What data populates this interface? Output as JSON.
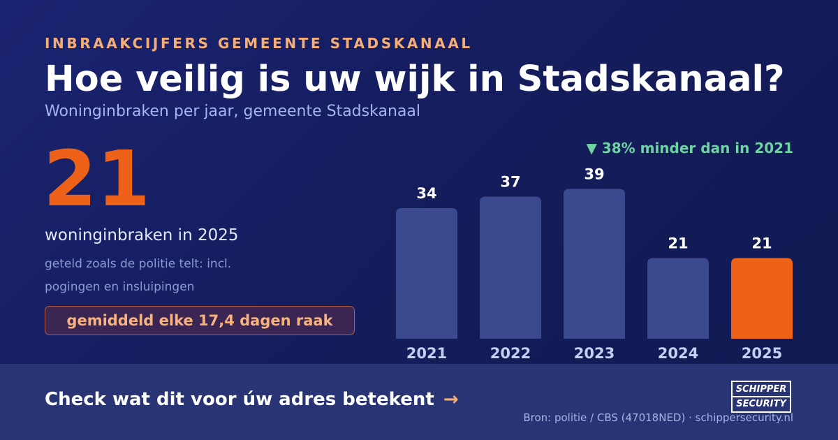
{
  "header": {
    "eyebrow": "INBRAAKCIJFERS GEMEENTE STADSKANAAL",
    "title": "Hoe veilig is uw wijk in Stadskanaal?",
    "subtitle": "Woninginbraken per jaar, gemeente Stadskanaal"
  },
  "stat": {
    "value": "21",
    "caption": "woninginbraken in 2025",
    "note": "geteld zoals de politie telt: incl. pogingen en insluipingen",
    "highlight": "gemiddeld elke 17,4 dagen raak"
  },
  "change_label": "▼ 38% minder dan in 2021",
  "chart_data": {
    "type": "bar",
    "categories": [
      "2021",
      "2022",
      "2023",
      "2024",
      "2025"
    ],
    "values": [
      34,
      37,
      39,
      21,
      21
    ],
    "title": "",
    "xlabel": "",
    "ylabel": "",
    "grid": false,
    "highlight_category": "2025"
  },
  "colors": {
    "bar": "#3b4a8f",
    "bar_highlight": "#ee6119",
    "value_label": "#ffffff",
    "tick_label": "#c5cff2",
    "accent": "#f6ae78",
    "positive": "#6fd3a3",
    "background": "#161f5e"
  },
  "footer": {
    "cta": "Check wat dit voor úw adres betekent",
    "cta_arrow": "→",
    "logo_line1": "SCHIPPER",
    "logo_line2": "SECURITY",
    "source": "Bron: politie / CBS (47018NED) · schippersecurity.nl"
  }
}
